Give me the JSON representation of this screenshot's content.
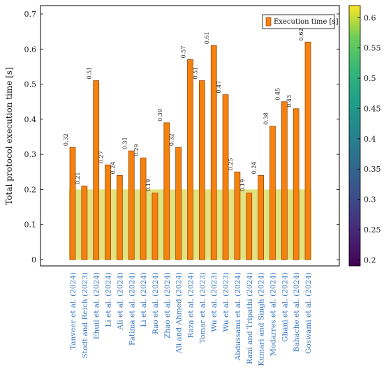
{
  "chart_data": {
    "type": "bar",
    "ylabel": "Total protocol execution time [s]",
    "xlabel": "",
    "ylim": [
      0,
      0.74
    ],
    "yticks": [
      "0",
      "0.1",
      "0.2",
      "0.3",
      "0.4",
      "0.5",
      "0.6",
      "0.7"
    ],
    "grid": false,
    "legend_position": "top-right",
    "series": [
      {
        "name": "Execution time [s]",
        "color": "#f5820f",
        "values": [
          0.32,
          0.21,
          0.51,
          0.27,
          0.24,
          0.31,
          0.29,
          0.19,
          0.39,
          0.32,
          0.57,
          0.51,
          0.61,
          0.47,
          0.25,
          0.19,
          0.24,
          0.38,
          0.45,
          0.43,
          0.62
        ],
        "data_labels": [
          "0.32",
          "0.21",
          "0.51",
          "0.27",
          "0.24",
          "0.31",
          "0.29",
          "0.19",
          "0.39",
          "0.32",
          "0.57",
          "0.51",
          "0.61",
          "0.47",
          "0.25",
          "0.19",
          "0.24",
          "0.38",
          "0.45",
          "0.43",
          "0.62"
        ]
      }
    ],
    "categories": [
      "Tanveer et al. (2024)",
      "Stodt and Reich (2023)",
      "Ehuil et al. (2024)",
      "Li et al. (2024)",
      "Ali et al. (2024)",
      "Fatima et al. (2024)",
      "Li et al. (2024)",
      "Rao et al. (2024)",
      "Zhao et al. (2024)",
      "Ali and Ahmed (2024)",
      "Raza et al. (2024)",
      "Tomar et al. (2023)",
      "Wu et al. (2023)",
      "Wu et al. (2023)",
      "Abdussami et al. (2024)",
      "Rani and Tripathi (2024)",
      "Kumari and Singh (2024)",
      "Modarres et al. (2024)",
      "Ghani et al. (2024)",
      "Bahache et al. (2024)",
      "Goswami et al. (2024)"
    ],
    "category_label_color": "#3b78c2",
    "colorbar": {
      "range": [
        0.19,
        0.62
      ],
      "ticks": [
        "0.2",
        "0.25",
        "0.3",
        "0.35",
        "0.4",
        "0.45",
        "0.5",
        "0.55",
        "0.6"
      ],
      "colormap": "viridis"
    }
  }
}
